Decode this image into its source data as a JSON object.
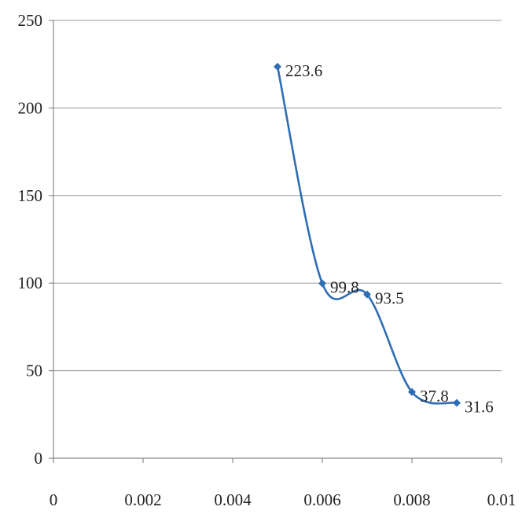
{
  "chart_data": {
    "type": "line",
    "title": "",
    "xlabel": "",
    "ylabel": "",
    "xlim": [
      0,
      0.01
    ],
    "ylim": [
      0,
      250
    ],
    "x_ticks": [
      0,
      0.002,
      0.004,
      0.006,
      0.008,
      0.01
    ],
    "x_tick_labels": [
      "0",
      "0.002",
      "0.004",
      "0.006",
      "0.008",
      "0.01"
    ],
    "y_ticks": [
      0,
      50,
      100,
      150,
      200,
      250
    ],
    "y_tick_labels": [
      "0",
      "50",
      "100",
      "150",
      "200",
      "250"
    ],
    "grid": "horizontal",
    "legend": "none",
    "smoothed": true,
    "color": "#2e6db4",
    "series": [
      {
        "x": [
          0.005,
          0.006,
          0.007,
          0.008,
          0.009
        ],
        "y": [
          223.6,
          99.8,
          93.5,
          37.8,
          31.6
        ],
        "labels": [
          "223.6",
          "99.8",
          "93.5",
          "37.8",
          "31.6"
        ]
      }
    ]
  }
}
